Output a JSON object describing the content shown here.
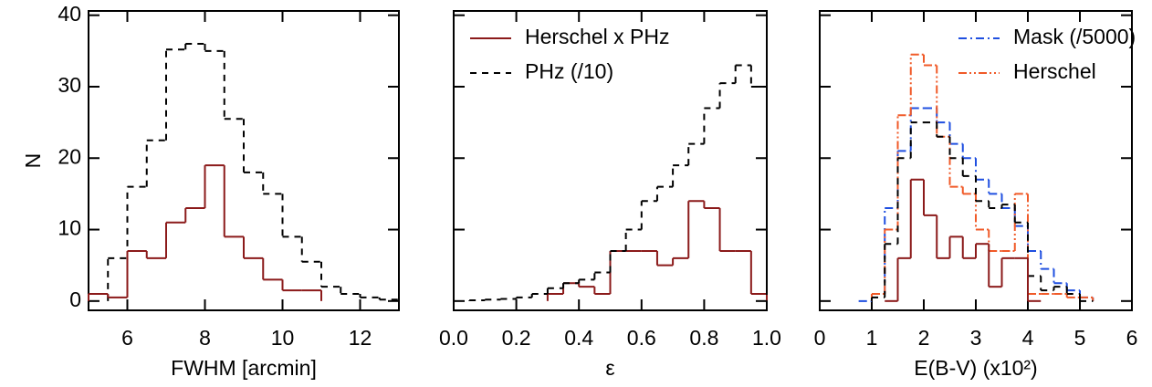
{
  "chart_data": [
    {
      "type": "histogram",
      "xlabel": "FWHM [arcmin]",
      "ylabel": "N",
      "xlim": [
        5,
        13
      ],
      "xticks": [
        6,
        8,
        10,
        12
      ],
      "ylim": [
        -1.3,
        40.6
      ],
      "yticks": [
        0,
        10,
        20,
        30,
        40
      ],
      "ytick_labels": true,
      "series": [
        {
          "color": "#000000",
          "dash": "7,6",
          "bins": [
            5.5,
            6,
            6.5,
            7,
            7.5,
            8,
            8.5,
            9,
            9.5,
            10,
            10.5,
            11,
            11.5,
            12,
            12.5,
            13
          ],
          "values": [
            6,
            16,
            22.5,
            35.2,
            36,
            35,
            25.5,
            18,
            15,
            9,
            5.5,
            2,
            1,
            0.5,
            0.2
          ]
        },
        {
          "color": "#8b1a1a",
          "dash": "none",
          "bins": [
            5,
            5.5,
            6,
            6.5,
            7,
            7.5,
            8,
            8.5,
            9,
            9.5,
            10,
            10.5,
            11
          ],
          "values": [
            1,
            0.5,
            7,
            6,
            11,
            13,
            19,
            9,
            6,
            3,
            1.5,
            1.5
          ]
        }
      ]
    },
    {
      "type": "histogram",
      "xlabel": "ε",
      "xlim": [
        0,
        1
      ],
      "xticks": [
        {
          "value": 0,
          "label": "0.0"
        },
        0.2,
        0.4,
        0.6,
        0.8,
        {
          "value": 1,
          "label": "1.0"
        }
      ],
      "ylim": [
        -1.3,
        40.6
      ],
      "yticks": [
        0,
        10,
        20,
        30,
        40
      ],
      "ytick_labels": false,
      "legend": "top-left",
      "series": [
        {
          "name": "Herschel x PHz",
          "color": "#8b1a1a",
          "dash": "none",
          "bins": [
            0.3,
            0.35,
            0.4,
            0.45,
            0.5,
            0.55,
            0.6,
            0.65,
            0.7,
            0.75,
            0.8,
            0.85,
            0.9,
            0.95,
            1.0
          ],
          "values": [
            1,
            2.5,
            2,
            1,
            7,
            7,
            7,
            5,
            6,
            14,
            13,
            7,
            7,
            1
          ]
        },
        {
          "name": "PHz (/10)",
          "color": "#000000",
          "dash": "7,6",
          "bins": [
            0.05,
            0.1,
            0.15,
            0.2,
            0.25,
            0.3,
            0.35,
            0.4,
            0.45,
            0.5,
            0.55,
            0.6,
            0.65,
            0.7,
            0.75,
            0.8,
            0.85,
            0.9,
            0.95,
            1.0
          ],
          "values": [
            0.1,
            0.2,
            0.3,
            0.5,
            1,
            1.8,
            2.5,
            3,
            4,
            7,
            10,
            14,
            16,
            19,
            22,
            27,
            30.5,
            33,
            30
          ]
        }
      ]
    },
    {
      "type": "histogram",
      "xlabel": "E(B-V) (x10²)",
      "xlim": [
        0,
        6
      ],
      "xticks": [
        0,
        1,
        2,
        3,
        4,
        5,
        6
      ],
      "ylim": [
        -1.3,
        40.6
      ],
      "yticks": [
        0,
        10,
        20,
        30,
        40
      ],
      "ytick_labels": false,
      "legend": "top-right",
      "series": [
        {
          "name": "Mask (/5000)",
          "color": "#1f4fe0",
          "dash": "9,4,2,4",
          "bins": [
            0.75,
            1,
            1.25,
            1.5,
            1.75,
            2,
            2.25,
            2.5,
            2.75,
            3,
            3.25,
            3.5,
            3.75,
            4,
            4.25,
            4.5,
            4.75,
            5,
            5.25
          ],
          "values": [
            0,
            1,
            13,
            21,
            27,
            27,
            25,
            22,
            20,
            17,
            15,
            13,
            10.5,
            7,
            4.5,
            2.5,
            1.5,
            0.5
          ]
        },
        {
          "name": "Herschel",
          "color": "#f05a28",
          "dash": "9,3,2,3,2,3",
          "bins": [
            1,
            1.25,
            1.5,
            1.75,
            2,
            2.25,
            2.5,
            2.75,
            3,
            3.25,
            3.5,
            3.75,
            4,
            4.25,
            4.5,
            4.75,
            5,
            5.25
          ],
          "values": [
            1,
            10,
            26,
            34.5,
            33,
            23,
            16,
            15,
            10,
            7,
            7,
            15,
            1,
            1,
            1,
            0.5,
            0.5
          ]
        },
        {
          "color": "#000000",
          "dash": "7,6",
          "bins": [
            1,
            1.25,
            1.5,
            1.75,
            2,
            2.25,
            2.5,
            2.75,
            3,
            3.25,
            3.5,
            3.75,
            4,
            4.25,
            4.5,
            4.75,
            5,
            5.25
          ],
          "values": [
            0.5,
            8,
            20,
            25,
            25,
            23,
            20,
            17.5,
            14,
            13,
            13.5,
            11,
            3.5,
            1.5,
            2,
            1,
            0
          ]
        },
        {
          "color": "#8b1a1a",
          "dash": "none",
          "bins": [
            1.25,
            1.5,
            1.75,
            2,
            2.25,
            2.5,
            2.75,
            3,
            3.25,
            3.5,
            3.75,
            4,
            4.25
          ],
          "values": [
            0,
            6,
            17,
            12,
            6,
            9,
            6,
            8,
            2,
            6,
            6,
            0
          ]
        }
      ]
    }
  ]
}
